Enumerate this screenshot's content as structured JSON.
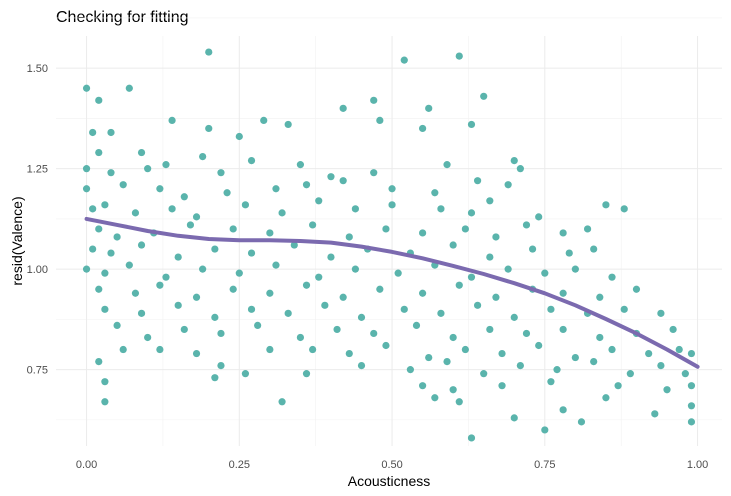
{
  "chart_data": {
    "type": "scatter",
    "title": "Checking for fitting",
    "xlabel": "Acousticness",
    "ylabel": "resid(Valence)",
    "xlim": [
      -0.05,
      1.04
    ],
    "ylim": [
      0.56,
      1.58
    ],
    "x_ticks": [
      0.0,
      0.25,
      0.5,
      0.75,
      1.0
    ],
    "x_tick_labels": [
      "0.00",
      "0.25",
      "0.50",
      "0.75",
      "1.00"
    ],
    "y_ticks": [
      0.75,
      1.0,
      1.25,
      1.5
    ],
    "y_tick_labels": [
      "0.75",
      "1.00",
      "1.25",
      "1.50"
    ],
    "grid": true,
    "legend": "none",
    "point_color": "#5ab4ac",
    "line_color": "#7b6aaf",
    "points": [
      [
        0.0,
        1.45
      ],
      [
        0.02,
        1.42
      ],
      [
        0.07,
        1.45
      ],
      [
        0.2,
        1.54
      ],
      [
        0.52,
        1.52
      ],
      [
        0.61,
        1.53
      ],
      [
        0.47,
        1.42
      ],
      [
        0.56,
        1.4
      ],
      [
        0.65,
        1.43
      ],
      [
        0.42,
        1.4
      ],
      [
        0.14,
        1.37
      ],
      [
        0.01,
        1.34
      ],
      [
        0.04,
        1.34
      ],
      [
        0.2,
        1.35
      ],
      [
        0.29,
        1.37
      ],
      [
        0.33,
        1.36
      ],
      [
        0.25,
        1.33
      ],
      [
        0.02,
        1.29
      ],
      [
        0.09,
        1.29
      ],
      [
        0.19,
        1.28
      ],
      [
        0.48,
        1.37
      ],
      [
        0.55,
        1.35
      ],
      [
        0.63,
        1.36
      ],
      [
        0.0,
        1.25
      ],
      [
        0.04,
        1.24
      ],
      [
        0.1,
        1.25
      ],
      [
        0.13,
        1.26
      ],
      [
        0.22,
        1.24
      ],
      [
        0.27,
        1.27
      ],
      [
        0.35,
        1.26
      ],
      [
        0.4,
        1.23
      ],
      [
        0.47,
        1.24
      ],
      [
        0.59,
        1.26
      ],
      [
        0.7,
        1.27
      ],
      [
        0.71,
        1.25
      ],
      [
        0.0,
        1.2
      ],
      [
        0.06,
        1.21
      ],
      [
        0.12,
        1.2
      ],
      [
        0.16,
        1.18
      ],
      [
        0.23,
        1.19
      ],
      [
        0.31,
        1.2
      ],
      [
        0.36,
        1.21
      ],
      [
        0.42,
        1.22
      ],
      [
        0.5,
        1.2
      ],
      [
        0.57,
        1.19
      ],
      [
        0.64,
        1.22
      ],
      [
        0.69,
        1.21
      ],
      [
        0.01,
        1.15
      ],
      [
        0.03,
        1.16
      ],
      [
        0.08,
        1.14
      ],
      [
        0.14,
        1.15
      ],
      [
        0.18,
        1.13
      ],
      [
        0.26,
        1.16
      ],
      [
        0.32,
        1.14
      ],
      [
        0.38,
        1.17
      ],
      [
        0.44,
        1.15
      ],
      [
        0.5,
        1.16
      ],
      [
        0.58,
        1.15
      ],
      [
        0.63,
        1.14
      ],
      [
        0.66,
        1.17
      ],
      [
        0.74,
        1.13
      ],
      [
        0.85,
        1.16
      ],
      [
        0.88,
        1.15
      ],
      [
        0.02,
        1.1
      ],
      [
        0.05,
        1.08
      ],
      [
        0.11,
        1.09
      ],
      [
        0.17,
        1.11
      ],
      [
        0.24,
        1.1
      ],
      [
        0.3,
        1.09
      ],
      [
        0.37,
        1.11
      ],
      [
        0.43,
        1.08
      ],
      [
        0.49,
        1.1
      ],
      [
        0.55,
        1.09
      ],
      [
        0.62,
        1.1
      ],
      [
        0.67,
        1.08
      ],
      [
        0.72,
        1.11
      ],
      [
        0.78,
        1.09
      ],
      [
        0.82,
        1.1
      ],
      [
        0.01,
        1.05
      ],
      [
        0.04,
        1.04
      ],
      [
        0.09,
        1.06
      ],
      [
        0.15,
        1.03
      ],
      [
        0.21,
        1.05
      ],
      [
        0.27,
        1.04
      ],
      [
        0.34,
        1.06
      ],
      [
        0.4,
        1.03
      ],
      [
        0.46,
        1.05
      ],
      [
        0.53,
        1.04
      ],
      [
        0.6,
        1.06
      ],
      [
        0.66,
        1.03
      ],
      [
        0.73,
        1.05
      ],
      [
        0.79,
        1.04
      ],
      [
        0.83,
        1.05
      ],
      [
        0.0,
        1.0
      ],
      [
        0.03,
        0.99
      ],
      [
        0.07,
        1.01
      ],
      [
        0.13,
        0.98
      ],
      [
        0.19,
        1.0
      ],
      [
        0.25,
        0.99
      ],
      [
        0.31,
        1.01
      ],
      [
        0.38,
        0.98
      ],
      [
        0.44,
        1.0
      ],
      [
        0.51,
        0.99
      ],
      [
        0.57,
        1.01
      ],
      [
        0.63,
        0.98
      ],
      [
        0.69,
        1.0
      ],
      [
        0.75,
        0.99
      ],
      [
        0.8,
        1.0
      ],
      [
        0.86,
        0.98
      ],
      [
        0.02,
        0.95
      ],
      [
        0.08,
        0.94
      ],
      [
        0.12,
        0.96
      ],
      [
        0.18,
        0.93
      ],
      [
        0.24,
        0.95
      ],
      [
        0.3,
        0.94
      ],
      [
        0.36,
        0.96
      ],
      [
        0.42,
        0.93
      ],
      [
        0.48,
        0.95
      ],
      [
        0.55,
        0.94
      ],
      [
        0.61,
        0.96
      ],
      [
        0.67,
        0.93
      ],
      [
        0.73,
        0.95
      ],
      [
        0.78,
        0.94
      ],
      [
        0.84,
        0.93
      ],
      [
        0.9,
        0.95
      ],
      [
        0.03,
        0.9
      ],
      [
        0.09,
        0.89
      ],
      [
        0.15,
        0.91
      ],
      [
        0.21,
        0.88
      ],
      [
        0.27,
        0.9
      ],
      [
        0.33,
        0.89
      ],
      [
        0.39,
        0.91
      ],
      [
        0.45,
        0.88
      ],
      [
        0.52,
        0.9
      ],
      [
        0.58,
        0.89
      ],
      [
        0.64,
        0.91
      ],
      [
        0.7,
        0.88
      ],
      [
        0.76,
        0.9
      ],
      [
        0.82,
        0.89
      ],
      [
        0.88,
        0.9
      ],
      [
        0.94,
        0.89
      ],
      [
        0.05,
        0.86
      ],
      [
        0.1,
        0.83
      ],
      [
        0.16,
        0.85
      ],
      [
        0.22,
        0.84
      ],
      [
        0.28,
        0.86
      ],
      [
        0.35,
        0.83
      ],
      [
        0.41,
        0.85
      ],
      [
        0.47,
        0.84
      ],
      [
        0.54,
        0.86
      ],
      [
        0.6,
        0.83
      ],
      [
        0.66,
        0.85
      ],
      [
        0.72,
        0.84
      ],
      [
        0.78,
        0.85
      ],
      [
        0.84,
        0.83
      ],
      [
        0.9,
        0.84
      ],
      [
        0.96,
        0.85
      ],
      [
        0.06,
        0.8
      ],
      [
        0.12,
        0.8
      ],
      [
        0.18,
        0.79
      ],
      [
        0.3,
        0.8
      ],
      [
        0.37,
        0.8
      ],
      [
        0.43,
        0.79
      ],
      [
        0.49,
        0.81
      ],
      [
        0.56,
        0.78
      ],
      [
        0.62,
        0.8
      ],
      [
        0.68,
        0.79
      ],
      [
        0.74,
        0.81
      ],
      [
        0.8,
        0.78
      ],
      [
        0.86,
        0.8
      ],
      [
        0.92,
        0.79
      ],
      [
        0.97,
        0.8
      ],
      [
        0.99,
        0.79
      ],
      [
        0.02,
        0.77
      ],
      [
        0.22,
        0.76
      ],
      [
        0.26,
        0.74
      ],
      [
        0.36,
        0.74
      ],
      [
        0.45,
        0.76
      ],
      [
        0.53,
        0.75
      ],
      [
        0.59,
        0.77
      ],
      [
        0.65,
        0.74
      ],
      [
        0.71,
        0.76
      ],
      [
        0.77,
        0.75
      ],
      [
        0.83,
        0.77
      ],
      [
        0.89,
        0.74
      ],
      [
        0.94,
        0.76
      ],
      [
        0.98,
        0.74
      ],
      [
        0.03,
        0.72
      ],
      [
        0.21,
        0.73
      ],
      [
        0.55,
        0.71
      ],
      [
        0.6,
        0.7
      ],
      [
        0.68,
        0.71
      ],
      [
        0.76,
        0.72
      ],
      [
        0.87,
        0.71
      ],
      [
        0.95,
        0.7
      ],
      [
        0.99,
        0.71
      ],
      [
        0.03,
        0.67
      ],
      [
        0.32,
        0.67
      ],
      [
        0.57,
        0.68
      ],
      [
        0.61,
        0.67
      ],
      [
        0.78,
        0.65
      ],
      [
        0.85,
        0.68
      ],
      [
        0.93,
        0.64
      ],
      [
        0.99,
        0.66
      ],
      [
        0.7,
        0.63
      ],
      [
        0.81,
        0.62
      ],
      [
        0.99,
        0.62
      ],
      [
        0.63,
        0.58
      ],
      [
        0.75,
        0.6
      ]
    ],
    "smooth": {
      "x": [
        0.0,
        0.05,
        0.1,
        0.15,
        0.2,
        0.25,
        0.3,
        0.35,
        0.4,
        0.45,
        0.5,
        0.55,
        0.6,
        0.65,
        0.7,
        0.75,
        0.8,
        0.85,
        0.9,
        0.95,
        1.0
      ],
      "y": [
        1.125,
        1.11,
        1.095,
        1.083,
        1.075,
        1.072,
        1.072,
        1.07,
        1.066,
        1.056,
        1.043,
        1.027,
        1.008,
        0.988,
        0.965,
        0.94,
        0.91,
        0.876,
        0.84,
        0.8,
        0.757
      ]
    }
  }
}
